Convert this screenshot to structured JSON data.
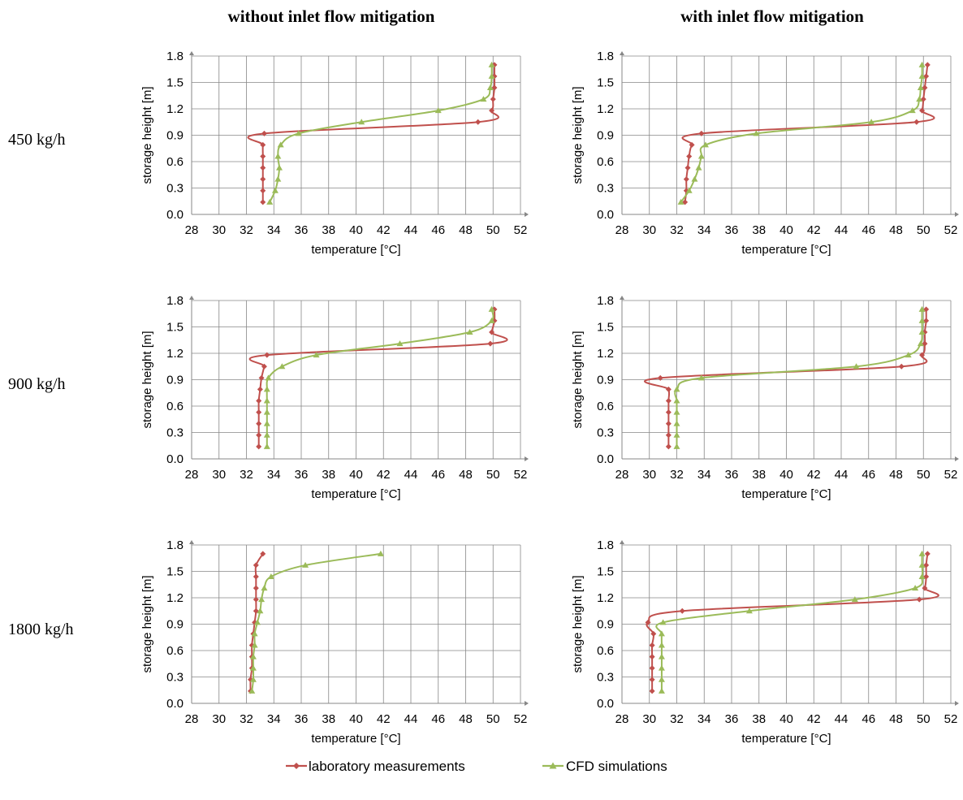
{
  "column_titles": [
    "without inlet flow mitigation",
    "with inlet flow mitigation"
  ],
  "row_labels": [
    "450 kg/h",
    "900 kg/h",
    "1800 kg/h"
  ],
  "legend": [
    {
      "label": "laboratory measurements",
      "color": "#c0504d",
      "marker": "diamond"
    },
    {
      "label": "CFD simulations",
      "color": "#9bbb59",
      "marker": "triangle"
    }
  ],
  "chart_data": [
    {
      "type": "line",
      "row": 0,
      "col": 0,
      "xlabel": "temperature [°C]",
      "ylabel": "storage height [m]",
      "xlim": [
        28,
        52
      ],
      "ylim": [
        0,
        1.8
      ],
      "xticks": [
        28,
        30,
        32,
        34,
        36,
        38,
        40,
        42,
        44,
        46,
        48,
        50,
        52
      ],
      "yticks": [
        "0.0",
        "0.3",
        "0.6",
        "0.9",
        "1.2",
        "1.5",
        "1.8"
      ],
      "grid": true,
      "series": [
        {
          "name": "laboratory measurements",
          "points": [
            [
              33.2,
              0.14
            ],
            [
              33.2,
              0.27
            ],
            [
              33.2,
              0.4
            ],
            [
              33.2,
              0.53
            ],
            [
              33.2,
              0.66
            ],
            [
              33.2,
              0.79
            ],
            [
              33.3,
              0.92
            ],
            [
              48.9,
              1.05
            ],
            [
              49.9,
              1.18
            ],
            [
              50.0,
              1.31
            ],
            [
              50.1,
              1.44
            ],
            [
              50.1,
              1.57
            ],
            [
              50.1,
              1.7
            ]
          ]
        },
        {
          "name": "CFD simulations",
          "points": [
            [
              33.7,
              0.14
            ],
            [
              34.1,
              0.27
            ],
            [
              34.3,
              0.4
            ],
            [
              34.4,
              0.53
            ],
            [
              34.3,
              0.66
            ],
            [
              34.5,
              0.79
            ],
            [
              35.8,
              0.92
            ],
            [
              40.4,
              1.05
            ],
            [
              46.0,
              1.18
            ],
            [
              49.3,
              1.31
            ],
            [
              49.8,
              1.44
            ],
            [
              49.9,
              1.57
            ],
            [
              49.9,
              1.7
            ]
          ]
        }
      ]
    },
    {
      "type": "line",
      "row": 0,
      "col": 1,
      "xlabel": "temperature [°C]",
      "ylabel": "storage height [m]",
      "xlim": [
        28,
        52
      ],
      "ylim": [
        0,
        1.8
      ],
      "xticks": [
        28,
        30,
        32,
        34,
        36,
        38,
        40,
        42,
        44,
        46,
        48,
        50,
        52
      ],
      "yticks": [
        "0.0",
        "0.3",
        "0.6",
        "0.9",
        "1.2",
        "1.5",
        "1.8"
      ],
      "grid": true,
      "series": [
        {
          "name": "laboratory measurements",
          "points": [
            [
              32.6,
              0.14
            ],
            [
              32.7,
              0.27
            ],
            [
              32.7,
              0.4
            ],
            [
              32.8,
              0.53
            ],
            [
              32.9,
              0.66
            ],
            [
              33.1,
              0.79
            ],
            [
              33.8,
              0.92
            ],
            [
              49.5,
              1.05
            ],
            [
              49.9,
              1.18
            ],
            [
              50.0,
              1.31
            ],
            [
              50.1,
              1.44
            ],
            [
              50.2,
              1.57
            ],
            [
              50.3,
              1.7
            ]
          ]
        },
        {
          "name": "CFD simulations",
          "points": [
            [
              32.3,
              0.14
            ],
            [
              32.9,
              0.27
            ],
            [
              33.3,
              0.4
            ],
            [
              33.6,
              0.53
            ],
            [
              33.8,
              0.66
            ],
            [
              34.1,
              0.79
            ],
            [
              37.8,
              0.92
            ],
            [
              46.2,
              1.05
            ],
            [
              49.2,
              1.18
            ],
            [
              49.7,
              1.31
            ],
            [
              49.8,
              1.44
            ],
            [
              49.9,
              1.57
            ],
            [
              49.9,
              1.7
            ]
          ]
        }
      ]
    },
    {
      "type": "line",
      "row": 1,
      "col": 0,
      "xlabel": "temperature [°C]",
      "ylabel": "storage height [m]",
      "xlim": [
        28,
        52
      ],
      "ylim": [
        0,
        1.8
      ],
      "xticks": [
        28,
        30,
        32,
        34,
        36,
        38,
        40,
        42,
        44,
        46,
        48,
        50,
        52
      ],
      "yticks": [
        "0.0",
        "0.3",
        "0.6",
        "0.9",
        "1.2",
        "1.5",
        "1.8"
      ],
      "grid": true,
      "series": [
        {
          "name": "laboratory measurements",
          "points": [
            [
              32.9,
              0.14
            ],
            [
              32.9,
              0.27
            ],
            [
              32.9,
              0.4
            ],
            [
              32.9,
              0.53
            ],
            [
              32.9,
              0.66
            ],
            [
              33.0,
              0.79
            ],
            [
              33.1,
              0.92
            ],
            [
              33.3,
              1.05
            ],
            [
              33.5,
              1.18
            ],
            [
              49.8,
              1.31
            ],
            [
              49.9,
              1.44
            ],
            [
              50.1,
              1.57
            ],
            [
              50.1,
              1.7
            ]
          ]
        },
        {
          "name": "CFD simulations",
          "points": [
            [
              33.5,
              0.14
            ],
            [
              33.5,
              0.27
            ],
            [
              33.5,
              0.4
            ],
            [
              33.5,
              0.53
            ],
            [
              33.5,
              0.66
            ],
            [
              33.5,
              0.79
            ],
            [
              33.6,
              0.92
            ],
            [
              34.6,
              1.05
            ],
            [
              37.1,
              1.18
            ],
            [
              43.2,
              1.31
            ],
            [
              48.3,
              1.44
            ],
            [
              49.9,
              1.57
            ],
            [
              49.9,
              1.7
            ]
          ]
        }
      ]
    },
    {
      "type": "line",
      "row": 1,
      "col": 1,
      "xlabel": "temperature [°C]",
      "ylabel": "storage height [m]",
      "xlim": [
        28,
        52
      ],
      "ylim": [
        0,
        1.8
      ],
      "xticks": [
        28,
        30,
        32,
        34,
        36,
        38,
        40,
        42,
        44,
        46,
        48,
        50,
        52
      ],
      "yticks": [
        "0.0",
        "0.3",
        "0.6",
        "0.9",
        "1.2",
        "1.5",
        "1.8"
      ],
      "grid": true,
      "series": [
        {
          "name": "laboratory measurements",
          "points": [
            [
              31.4,
              0.14
            ],
            [
              31.4,
              0.27
            ],
            [
              31.4,
              0.4
            ],
            [
              31.4,
              0.53
            ],
            [
              31.4,
              0.66
            ],
            [
              31.4,
              0.79
            ],
            [
              30.8,
              0.92
            ],
            [
              48.4,
              1.05
            ],
            [
              49.9,
              1.18
            ],
            [
              50.1,
              1.31
            ],
            [
              50.1,
              1.44
            ],
            [
              50.2,
              1.57
            ],
            [
              50.2,
              1.7
            ]
          ]
        },
        {
          "name": "CFD simulations",
          "points": [
            [
              32.0,
              0.14
            ],
            [
              32.0,
              0.27
            ],
            [
              32.0,
              0.4
            ],
            [
              32.0,
              0.53
            ],
            [
              32.0,
              0.66
            ],
            [
              32.0,
              0.79
            ],
            [
              33.8,
              0.92
            ],
            [
              45.1,
              1.05
            ],
            [
              48.9,
              1.18
            ],
            [
              49.8,
              1.31
            ],
            [
              49.9,
              1.44
            ],
            [
              49.9,
              1.57
            ],
            [
              49.9,
              1.7
            ]
          ]
        }
      ]
    },
    {
      "type": "line",
      "row": 2,
      "col": 0,
      "xlabel": "temperature [°C]",
      "ylabel": "storage height [m]",
      "xlim": [
        28,
        52
      ],
      "ylim": [
        0,
        1.8
      ],
      "xticks": [
        28,
        30,
        32,
        34,
        36,
        38,
        40,
        42,
        44,
        46,
        48,
        50,
        52
      ],
      "yticks": [
        "0.0",
        "0.3",
        "0.6",
        "0.9",
        "1.2",
        "1.5",
        "1.8"
      ],
      "grid": true,
      "series": [
        {
          "name": "laboratory measurements",
          "points": [
            [
              32.3,
              0.14
            ],
            [
              32.3,
              0.27
            ],
            [
              32.4,
              0.4
            ],
            [
              32.4,
              0.53
            ],
            [
              32.4,
              0.66
            ],
            [
              32.5,
              0.79
            ],
            [
              32.6,
              0.92
            ],
            [
              32.7,
              1.05
            ],
            [
              32.7,
              1.18
            ],
            [
              32.7,
              1.31
            ],
            [
              32.7,
              1.44
            ],
            [
              32.7,
              1.57
            ],
            [
              33.2,
              1.7
            ]
          ]
        },
        {
          "name": "CFD simulations",
          "points": [
            [
              32.4,
              0.14
            ],
            [
              32.5,
              0.27
            ],
            [
              32.5,
              0.4
            ],
            [
              32.5,
              0.53
            ],
            [
              32.6,
              0.66
            ],
            [
              32.6,
              0.79
            ],
            [
              32.8,
              0.92
            ],
            [
              33.0,
              1.05
            ],
            [
              33.1,
              1.18
            ],
            [
              33.3,
              1.31
            ],
            [
              33.8,
              1.44
            ],
            [
              36.3,
              1.57
            ],
            [
              41.8,
              1.7
            ]
          ]
        }
      ]
    },
    {
      "type": "line",
      "row": 2,
      "col": 1,
      "xlabel": "temperature [°C]",
      "ylabel": "storage height [m]",
      "xlim": [
        28,
        52
      ],
      "ylim": [
        0,
        1.8
      ],
      "xticks": [
        28,
        30,
        32,
        34,
        36,
        38,
        40,
        42,
        44,
        46,
        48,
        50,
        52
      ],
      "yticks": [
        "0.0",
        "0.3",
        "0.6",
        "0.9",
        "1.2",
        "1.5",
        "1.8"
      ],
      "grid": true,
      "series": [
        {
          "name": "laboratory measurements",
          "points": [
            [
              30.2,
              0.14
            ],
            [
              30.2,
              0.27
            ],
            [
              30.2,
              0.4
            ],
            [
              30.2,
              0.53
            ],
            [
              30.2,
              0.66
            ],
            [
              30.3,
              0.79
            ],
            [
              29.9,
              0.92
            ],
            [
              32.4,
              1.05
            ],
            [
              49.7,
              1.18
            ],
            [
              50.1,
              1.31
            ],
            [
              50.2,
              1.44
            ],
            [
              50.2,
              1.57
            ],
            [
              50.3,
              1.7
            ]
          ]
        },
        {
          "name": "CFD simulations",
          "points": [
            [
              30.9,
              0.14
            ],
            [
              30.9,
              0.27
            ],
            [
              30.9,
              0.4
            ],
            [
              30.9,
              0.53
            ],
            [
              30.9,
              0.66
            ],
            [
              30.9,
              0.79
            ],
            [
              31.0,
              0.92
            ],
            [
              37.3,
              1.05
            ],
            [
              45.0,
              1.18
            ],
            [
              49.4,
              1.31
            ],
            [
              49.9,
              1.44
            ],
            [
              49.9,
              1.57
            ],
            [
              49.9,
              1.7
            ]
          ]
        }
      ]
    }
  ]
}
